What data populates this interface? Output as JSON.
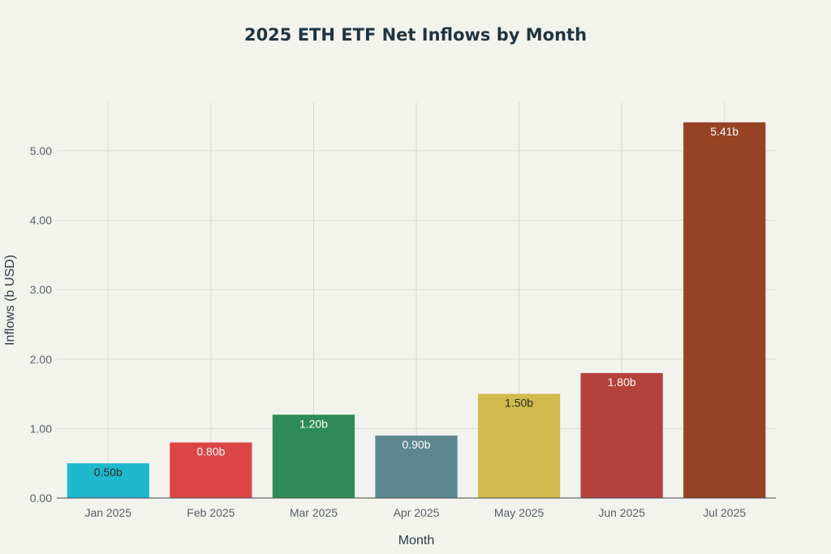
{
  "chart_data": {
    "type": "bar",
    "title": "2025 ETH ETF Net Inflows by Month",
    "xlabel": "Month",
    "ylabel": "Inflows (b USD)",
    "ylim": [
      0,
      5.7
    ],
    "yticks": [
      "0.00",
      "1.00",
      "2.00",
      "3.00",
      "4.00",
      "5.00"
    ],
    "grid": true,
    "categories": [
      "Jan 2025",
      "Feb 2025",
      "Mar 2025",
      "Apr 2025",
      "May 2025",
      "Jun 2025",
      "Jul 2025"
    ],
    "values": [
      0.5,
      0.8,
      1.2,
      0.9,
      1.5,
      1.8,
      5.41
    ],
    "data_labels": [
      "0.50b",
      "0.80b",
      "1.20b",
      "0.90b",
      "1.50b",
      "1.80b",
      "5.41b"
    ],
    "colors": [
      "#1fb8cd",
      "#db4545",
      "#2e8b57",
      "#5d878f",
      "#d2ba4c",
      "#b4413c",
      "#964325"
    ],
    "label_colors": [
      "#2a2a2a",
      "#ffffff",
      "#ffffff",
      "#ffffff",
      "#2a2a2a",
      "#ffffff",
      "#ffffff"
    ]
  }
}
